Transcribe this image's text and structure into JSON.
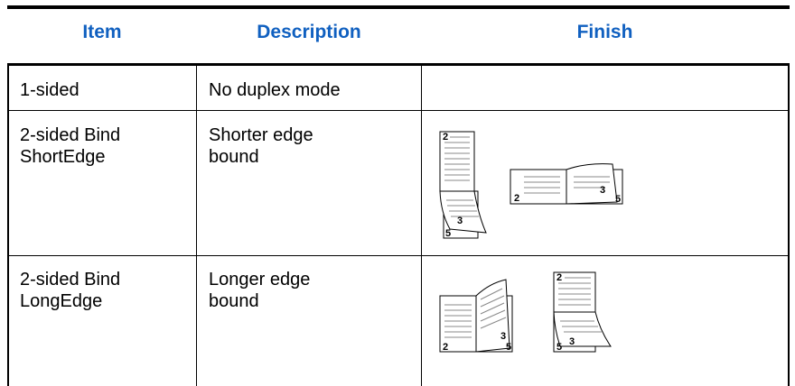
{
  "table": {
    "header": [
      "Item",
      "Description",
      "Finish"
    ],
    "rows": [
      {
        "item": [
          "1-sided"
        ],
        "description": [
          "No duplex mode"
        ]
      },
      {
        "item": [
          "2-sided Bind",
          "ShortEdge"
        ],
        "description": [
          "Shorter edge",
          "bound"
        ],
        "finish": [
          "2",
          "3",
          "5",
          "2",
          "3",
          "5"
        ]
      },
      {
        "item": [
          "2-sided Bind",
          "LongEdge"
        ],
        "description": [
          "Longer edge",
          "bound"
        ],
        "finish": [
          "2",
          "3",
          "5",
          "2",
          "3",
          "5"
        ]
      }
    ]
  }
}
